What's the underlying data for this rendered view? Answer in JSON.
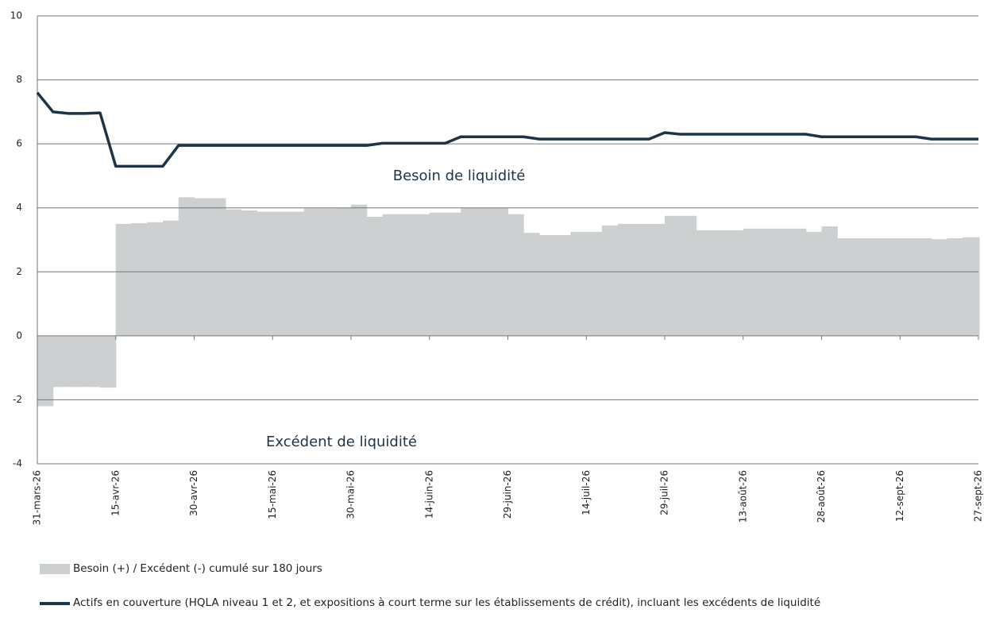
{
  "chart_data": {
    "type": "bar-line",
    "categories": [
      "31-mars-26",
      null,
      null,
      null,
      null,
      "15-avr-26",
      null,
      null,
      null,
      null,
      "30-avr-26",
      null,
      null,
      null,
      null,
      "15-mai-26",
      null,
      null,
      null,
      null,
      "30-mai-26",
      null,
      null,
      null,
      null,
      "14-juin-26",
      null,
      null,
      null,
      null,
      "29-juin-26",
      null,
      null,
      null,
      null,
      "14-juil-26",
      null,
      null,
      null,
      null,
      "29-juil-26",
      null,
      null,
      null,
      null,
      "13-août-26",
      null,
      null,
      null,
      null,
      "28-août-26",
      null,
      null,
      null,
      null,
      "12-sept-26",
      null,
      null,
      null,
      null,
      "27-sept-26"
    ],
    "series": [
      {
        "name": "Besoin (+)  / Excédent (-) cumulé sur 180 jours",
        "color": "#cdcfd1",
        "type": "bar",
        "values": [
          -2.2,
          -1.6,
          -1.6,
          -1.6,
          -1.62,
          3.5,
          3.52,
          3.55,
          3.6,
          4.33,
          4.3,
          4.3,
          3.95,
          3.92,
          3.88,
          3.88,
          3.88,
          3.98,
          3.98,
          4.0,
          4.1,
          3.72,
          3.8,
          3.8,
          3.8,
          3.85,
          3.85,
          4.0,
          4.0,
          4.0,
          3.8,
          3.22,
          3.15,
          3.15,
          3.25,
          3.25,
          3.45,
          3.5,
          3.5,
          3.5,
          3.75,
          3.75,
          3.3,
          3.3,
          3.3,
          3.35,
          3.35,
          3.35,
          3.35,
          3.25,
          3.42,
          3.05,
          3.05,
          3.05,
          3.05,
          3.05,
          3.05,
          3.02,
          3.05,
          3.08,
          3.08
        ]
      },
      {
        "name": " Actifs en couverture (HQLA niveau 1 et 2, et expositions à court terme sur les établissements de crédit), incluant les excédents de liquidité",
        "color": "#1c3446",
        "type": "line",
        "values": [
          7.6,
          7.0,
          6.95,
          6.95,
          6.97,
          5.3,
          5.3,
          5.3,
          5.3,
          5.95,
          5.95,
          5.95,
          5.95,
          5.95,
          5.95,
          5.95,
          5.95,
          5.95,
          5.95,
          5.95,
          5.95,
          5.95,
          6.02,
          6.02,
          6.02,
          6.02,
          6.02,
          6.22,
          6.22,
          6.22,
          6.22,
          6.22,
          6.15,
          6.15,
          6.15,
          6.15,
          6.15,
          6.15,
          6.15,
          6.15,
          6.35,
          6.3,
          6.3,
          6.3,
          6.3,
          6.3,
          6.3,
          6.3,
          6.3,
          6.3,
          6.22,
          6.22,
          6.22,
          6.22,
          6.22,
          6.22,
          6.22,
          6.15,
          6.15,
          6.15,
          6.15
        ]
      }
    ],
    "annotations": [
      "Besoin de liquidité",
      "Excédent de liquidité"
    ],
    "ylim": [
      -4,
      10
    ],
    "yticks": [
      -4,
      -2,
      0,
      2,
      4,
      6,
      8,
      10
    ],
    "grid": true
  }
}
